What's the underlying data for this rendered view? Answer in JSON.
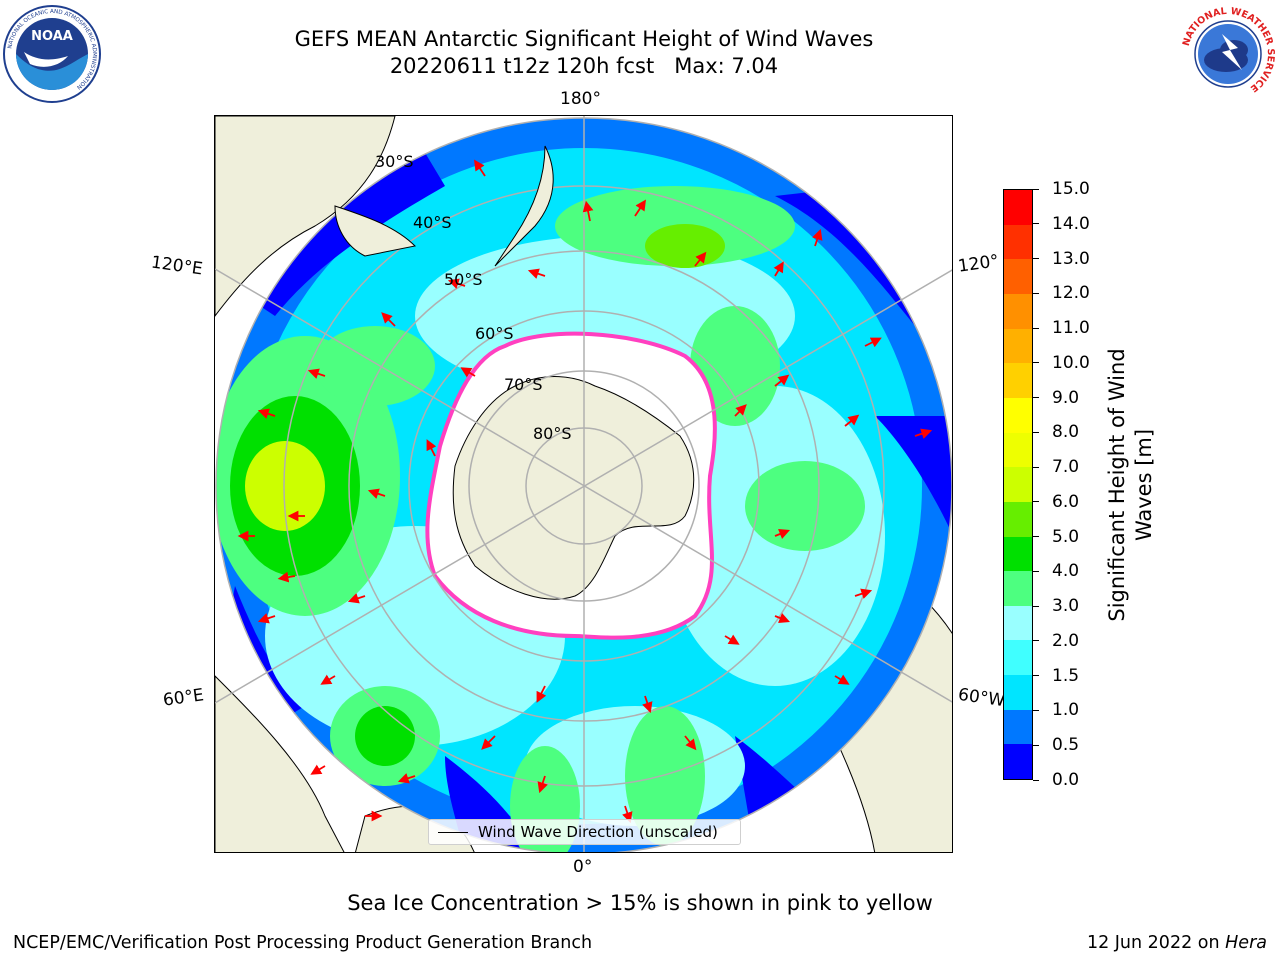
{
  "title": {
    "line1": "GEFS MEAN Antarctic Significant Height of Wind Waves",
    "line2": "20220611 t12z 120h fcst   Max: 7.04"
  },
  "logos": {
    "left": {
      "name": "NOAA",
      "ring_text": "NATIONAL OCEANIC AND ATMOSPHERIC ADMINISTRATION",
      "bottom_text": "U.S. DEPARTMENT OF COMMERCE"
    },
    "right": {
      "name": "National Weather Service",
      "ring_text": "NATIONAL WEATHER SERVICE"
    }
  },
  "map": {
    "projection": "south-polar-stereographic",
    "longitude_labels": [
      "180°",
      "120°E",
      "120°",
      "60°E",
      "60°W",
      "0°"
    ],
    "latitude_labels": [
      "30°S",
      "40°S",
      "50°S",
      "60°S",
      "70°S",
      "80°S"
    ]
  },
  "legend": {
    "label": "Wind Wave Direction (unscaled)"
  },
  "colorbar": {
    "label_line1": "Significant Height of Wind",
    "label_line2": "Waves [m]",
    "ticks": [
      "0.0",
      "0.5",
      "1.0",
      "1.5",
      "2.0",
      "3.0",
      "4.0",
      "5.0",
      "6.0",
      "7.0",
      "8.0",
      "9.0",
      "10.0",
      "11.0",
      "12.0",
      "13.0",
      "14.0",
      "15.0"
    ],
    "colors": [
      "#0000ff",
      "#0078ff",
      "#00e5ff",
      "#40ffff",
      "#99ffff",
      "#4dff80",
      "#00e000",
      "#66ee00",
      "#ccff00",
      "#eeff00",
      "#ffff00",
      "#ffd000",
      "#ffb000",
      "#ff9000",
      "#ff6000",
      "#ff3000",
      "#ff0000"
    ]
  },
  "note": "Sea Ice Concentration > 15% is shown in pink to yellow",
  "footer": {
    "left": "NCEP/EMC/Verification Post Processing Product Generation Branch",
    "right_prefix": "12 Jun 2022 on ",
    "right_italic": "Hera"
  }
}
